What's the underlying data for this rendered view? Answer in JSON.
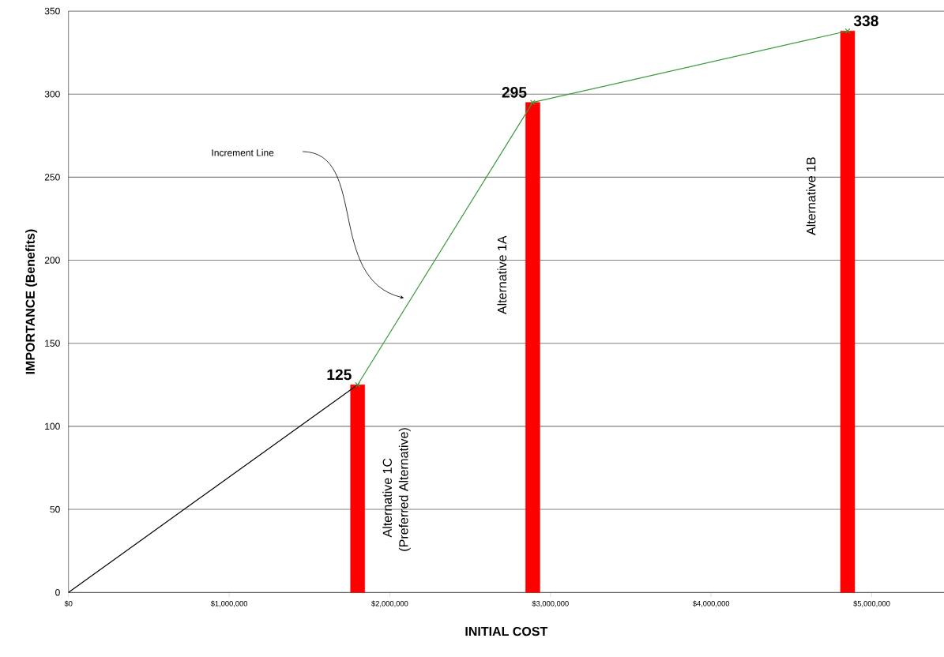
{
  "chart_data": {
    "type": "bar",
    "xlabel": "INITIAL COST",
    "ylabel": "IMPORTANCE (Benefits)",
    "xlim": [
      0,
      5450000
    ],
    "ylim": [
      0,
      350
    ],
    "xticks": [
      {
        "value": 0,
        "label": "$0"
      },
      {
        "value": 1000000,
        "label": "$1,000,000"
      },
      {
        "value": 2000000,
        "label": "$2,000,000"
      },
      {
        "value": 3000000,
        "label": "$3,000,000"
      },
      {
        "value": 4000000,
        "label": "$4,000,000"
      },
      {
        "value": 5000000,
        "label": "$5,000,000"
      }
    ],
    "yticks": [
      0,
      50,
      100,
      150,
      200,
      250,
      300,
      350
    ],
    "grid": "y",
    "series": [
      {
        "color": "#ff0000",
        "x": [
          1800000,
          2890000,
          4850000
        ],
        "values": [
          125,
          295,
          338
        ],
        "value_labels": [
          "125",
          "295",
          "338"
        ]
      },
      {
        "type": "line",
        "color": "#000000",
        "x": [
          0,
          1800000
        ],
        "values": [
          0,
          125
        ]
      },
      {
        "type": "line",
        "name": "Increment Line",
        "color": "#3a9a3a",
        "marker": "cross",
        "x": [
          1800000,
          2890000,
          4850000
        ],
        "values": [
          125,
          295,
          338
        ]
      }
    ],
    "annotations": [
      "Alternative 1C",
      "(Preferred Alternative)",
      "Alternative 1A",
      "Alternative 1B"
    ]
  }
}
